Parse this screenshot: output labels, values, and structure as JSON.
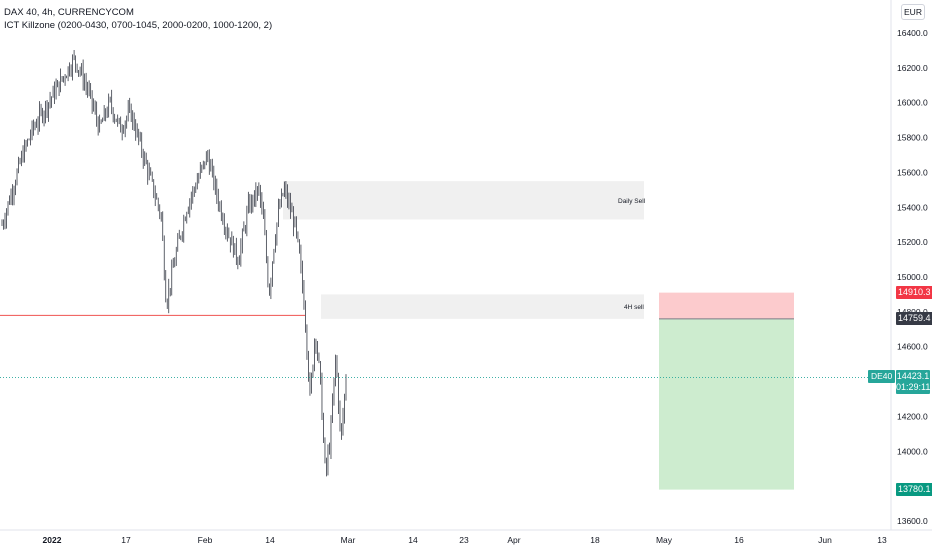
{
  "legend": {
    "title": "DAX 40, 4h, CURRENCYCOM",
    "indicator": "ICT Killzone (0200-0430, 0700-1045, 2000-0200, 1000-1200, 2)"
  },
  "currency": "EUR",
  "zones": [
    {
      "label": "Daily Sell",
      "low": 15330,
      "high": 15550
    },
    {
      "label": "4H sell",
      "low": 14760,
      "high": 14900
    }
  ],
  "support_line": 14780,
  "position": {
    "stop": 14910.3,
    "entry": 14759.4,
    "target": 13780.1
  },
  "current": {
    "symbol": "DE40",
    "price": "14423.1",
    "countdown": "01:29:11",
    "value": 14423.1
  },
  "colors": {
    "up": "#26a69a",
    "stop": "#f23645",
    "target": "#089981",
    "zone": "#f0f0f0",
    "risk": "#fccbcd",
    "reward": "#cdeccf",
    "candle": "#363a45",
    "line": "#ef5350"
  },
  "chart_data": {
    "type": "candlestick",
    "ylim": [
      13500,
      16550
    ],
    "y_ticks": [
      "16400.0",
      "16200.0",
      "16000.0",
      "15800.0",
      "15600.0",
      "15400.0",
      "15200.0",
      "15000.0",
      "14800.0",
      "14600.0",
      "14400.0",
      "14200.0",
      "14000.0",
      "13800.0",
      "13600.0"
    ],
    "x_ticks": [
      "2022",
      "17",
      "Feb",
      "14",
      "Mar",
      "14",
      "23",
      "Apr",
      "18",
      "May",
      "16",
      "Jun",
      "13"
    ],
    "price_labels": [
      "14910.3",
      "14759.4",
      "13780.1"
    ],
    "close_path": [
      {
        "t": 0,
        "v": 15300
      },
      {
        "t": 2,
        "v": 15500
      },
      {
        "t": 4,
        "v": 15700
      },
      {
        "t": 6,
        "v": 15850
      },
      {
        "t": 8,
        "v": 15950
      },
      {
        "t": 10,
        "v": 16050
      },
      {
        "t": 12,
        "v": 16150
      },
      {
        "t": 14,
        "v": 16250
      },
      {
        "t": 15,
        "v": 16200
      },
      {
        "t": 17,
        "v": 16050
      },
      {
        "t": 19,
        "v": 15850
      },
      {
        "t": 21,
        "v": 16000
      },
      {
        "t": 23,
        "v": 15850
      },
      {
        "t": 25,
        "v": 15950
      },
      {
        "t": 27,
        "v": 15750
      },
      {
        "t": 29,
        "v": 15550
      },
      {
        "t": 31,
        "v": 15350
      },
      {
        "t": 32,
        "v": 14850
      },
      {
        "t": 34,
        "v": 15150
      },
      {
        "t": 36,
        "v": 15400
      },
      {
        "t": 38,
        "v": 15550
      },
      {
        "t": 40,
        "v": 15700
      },
      {
        "t": 42,
        "v": 15450
      },
      {
        "t": 44,
        "v": 15250
      },
      {
        "t": 46,
        "v": 15100
      },
      {
        "t": 48,
        "v": 15400
      },
      {
        "t": 50,
        "v": 15500
      },
      {
        "t": 51,
        "v": 15300
      },
      {
        "t": 52,
        "v": 14900
      },
      {
        "t": 53,
        "v": 15200
      },
      {
        "t": 54,
        "v": 15400
      },
      {
        "t": 55,
        "v": 15500
      },
      {
        "t": 56,
        "v": 15400
      },
      {
        "t": 57,
        "v": 15300
      },
      {
        "t": 58,
        "v": 15100
      },
      {
        "t": 59,
        "v": 14800
      },
      {
        "t": 60,
        "v": 14300
      },
      {
        "t": 61,
        "v": 14700
      },
      {
        "t": 62,
        "v": 14400
      },
      {
        "t": 63,
        "v": 13850
      },
      {
        "t": 64,
        "v": 14100
      },
      {
        "t": 65,
        "v": 14550
      },
      {
        "t": 66,
        "v": 14050
      },
      {
        "t": 67,
        "v": 14423
      }
    ]
  }
}
